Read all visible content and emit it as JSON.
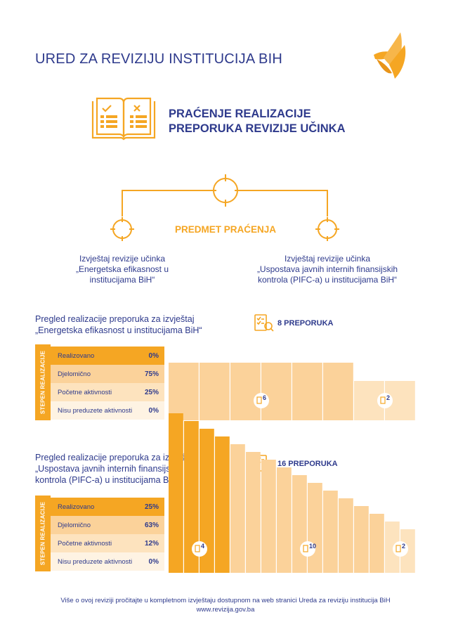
{
  "header": {
    "org_title": "URED ZA REVIZIJU INSTITUCIJA BIH",
    "main_title_line1": "PRAĆENJE REALIZACIJE",
    "main_title_line2": "PREPORUKA REVIZIJE UČINKA"
  },
  "subject": {
    "label": "PREDMET PRAĆENJA",
    "reports": [
      {
        "lines": [
          "Izvještaj revizije učinka",
          "„Energetska efikasnost u",
          "institucijama BiH“"
        ]
      },
      {
        "lines": [
          "Izvještaj revizije učinka",
          "„Uspostava javnih internih finansijskih",
          "kontrola (PIFC-a) u institucijama BiH“"
        ]
      }
    ]
  },
  "overviews": [
    {
      "title_lines": [
        "Pregled realizacije preporuka za izvještaj",
        "„Energetska efikasnost u institucijama BiH“"
      ],
      "recommendations": "8 PREPORUKA",
      "axis_label": "STEPEN REALIZACIJE",
      "statuses": [
        {
          "label": "Realizovano",
          "pct": "0%",
          "count": 0,
          "color": "#f5a623"
        },
        {
          "label": "Djelomično",
          "pct": "75%",
          "count": 6,
          "color": "#fbd29a"
        },
        {
          "label": "Početne aktivnosti",
          "pct": "25%",
          "count": 2,
          "color": "#fde3be"
        },
        {
          "label": "Nisu preduzete aktivnosti",
          "pct": "0%",
          "count": 0,
          "color": "#fef3e3"
        }
      ],
      "bar_labels": {
        "1": "6",
        "2": "2"
      }
    },
    {
      "title_lines": [
        "Pregled realizacije preporuka za izvještaj",
        "„Uspostava javnih internih finansijskih",
        "kontrola (PIFC-a) u institucijama BiH“"
      ],
      "recommendations": "16 PREPORUKA",
      "axis_label": "STEPEN REALIZACIJE",
      "statuses": [
        {
          "label": "Realizovano",
          "pct": "25%",
          "count": 4,
          "color": "#f5a623"
        },
        {
          "label": "Djelomično",
          "pct": "63%",
          "count": 10,
          "color": "#fbd29a"
        },
        {
          "label": "Početne aktivnosti",
          "pct": "12%",
          "count": 2,
          "color": "#fde3be"
        },
        {
          "label": "Nisu preduzete aktivnosti",
          "pct": "0%",
          "count": 0,
          "color": "#fef3e3"
        }
      ],
      "bar_labels": {
        "0": "4",
        "1": "10",
        "2": "2"
      }
    }
  ],
  "footer": {
    "line1": "Više o ovoj reviziji pročitajte u kompletnom izvještaju dostupnom na web stranici Ureda za reviziju institucija BiH",
    "line2": "www.revizija.gov.ba"
  },
  "colors": {
    "accent": "#f5a623",
    "primary": "#2e3a8c"
  }
}
